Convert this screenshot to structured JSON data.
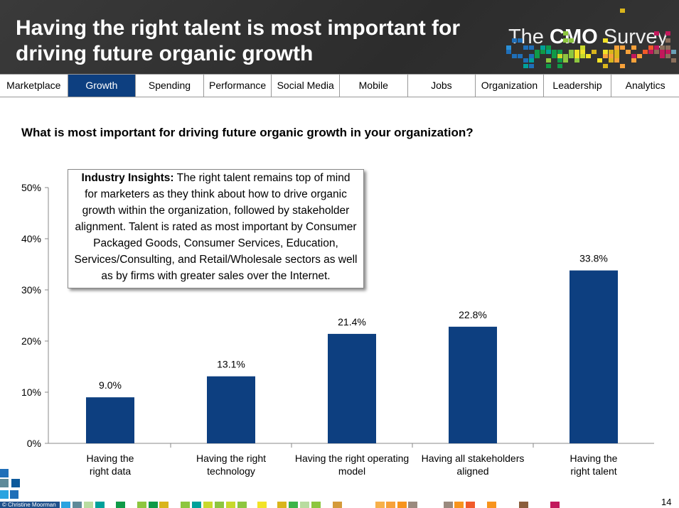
{
  "header": {
    "title": "Having the right talent is most important for driving future organic growth",
    "logo_prefix": "The",
    "logo_bold": "CMO",
    "logo_suffix": "Survey"
  },
  "nav": {
    "tabs": [
      "Marketplace",
      "Growth",
      "Spending",
      "Performance",
      "Social Media",
      "Mobile",
      "Jobs",
      "Organization",
      "Leadership",
      "Analytics"
    ],
    "active": "Growth",
    "active_color": "#0d3f80"
  },
  "question": "What is most important for driving future organic growth in your organization?",
  "insight": {
    "label": "Industry Insights:",
    "text": " The right talent remains top of mind for marketers as they think about how to drive organic growth within the organization, followed by stakeholder alignment. Talent is rated as most important by Consumer Packaged Goods, Consumer Services, Education, Services/Consulting, and Retail/Wholesale sectors as well as by firms with greater sales over the Internet."
  },
  "chart_data": {
    "type": "bar",
    "categories": [
      "Having the right data",
      "Having the right technology",
      "Having the right operating model",
      "Having all stakeholders aligned",
      "Having the right talent"
    ],
    "values": [
      9.0,
      13.1,
      21.4,
      22.8,
      33.8
    ],
    "data_labels": [
      "9.0%",
      "13.1%",
      "21.4%",
      "22.8%",
      "33.8%"
    ],
    "ylim": [
      0,
      50
    ],
    "yticks": [
      "0%",
      "10%",
      "20%",
      "30%",
      "40%",
      "50%"
    ],
    "bar_color": "#0d3f80",
    "grid": false
  },
  "footer": {
    "credit": "© Christine Moorman",
    "page": "14"
  }
}
